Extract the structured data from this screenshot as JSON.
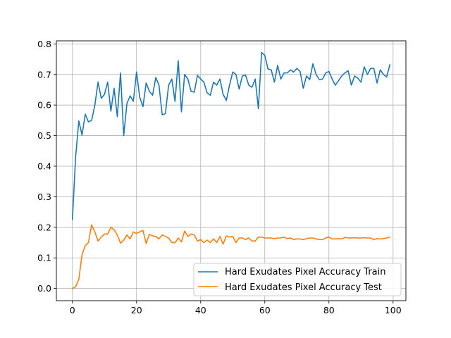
{
  "chart_data": {
    "type": "line",
    "title": "",
    "xlabel": "",
    "ylabel": "",
    "xlim": [
      -5,
      104
    ],
    "ylim": [
      -0.04,
      0.81
    ],
    "x_ticks": [
      0,
      20,
      40,
      60,
      80,
      100
    ],
    "y_ticks": [
      0.0,
      0.1,
      0.2,
      0.3,
      0.4,
      0.5,
      0.6,
      0.7,
      0.8
    ],
    "grid": true,
    "legend_position": "bottom-right",
    "x": [
      0,
      1,
      2,
      3,
      4,
      5,
      6,
      7,
      8,
      9,
      10,
      11,
      12,
      13,
      14,
      15,
      16,
      17,
      18,
      19,
      20,
      21,
      22,
      23,
      24,
      25,
      26,
      27,
      28,
      29,
      30,
      31,
      32,
      33,
      34,
      35,
      36,
      37,
      38,
      39,
      40,
      41,
      42,
      43,
      44,
      45,
      46,
      47,
      48,
      49,
      50,
      51,
      52,
      53,
      54,
      55,
      56,
      57,
      58,
      59,
      60,
      61,
      62,
      63,
      64,
      65,
      66,
      67,
      68,
      69,
      70,
      71,
      72,
      73,
      74,
      75,
      76,
      77,
      78,
      79,
      80,
      81,
      82,
      83,
      84,
      85,
      86,
      87,
      88,
      89,
      90,
      91,
      92,
      93,
      94,
      95,
      96,
      97,
      98,
      99
    ],
    "series": [
      {
        "name": "Hard Exudates Pixel Accuracy Train",
        "color": "#1f77b4",
        "values": [
          0.225,
          0.43,
          0.548,
          0.502,
          0.57,
          0.545,
          0.55,
          0.6,
          0.675,
          0.622,
          0.635,
          0.675,
          0.58,
          0.655,
          0.562,
          0.705,
          0.5,
          0.605,
          0.63,
          0.612,
          0.708,
          0.625,
          0.595,
          0.672,
          0.645,
          0.632,
          0.69,
          0.665,
          0.568,
          0.572,
          0.665,
          0.685,
          0.612,
          0.745,
          0.578,
          0.7,
          0.685,
          0.645,
          0.642,
          0.697,
          0.685,
          0.675,
          0.64,
          0.632,
          0.675,
          0.665,
          0.685,
          0.635,
          0.615,
          0.665,
          0.708,
          0.7,
          0.652,
          0.695,
          0.698,
          0.665,
          0.658,
          0.685,
          0.588,
          0.772,
          0.762,
          0.718,
          0.715,
          0.675,
          0.73,
          0.685,
          0.705,
          0.705,
          0.715,
          0.708,
          0.72,
          0.71,
          0.655,
          0.695,
          0.683,
          0.735,
          0.7,
          0.683,
          0.685,
          0.705,
          0.71,
          0.685,
          0.665,
          0.68,
          0.695,
          0.705,
          0.712,
          0.665,
          0.695,
          0.688,
          0.675,
          0.725,
          0.7,
          0.72,
          0.72,
          0.672,
          0.715,
          0.7,
          0.692,
          0.732
        ]
      },
      {
        "name": "Hard Exudates Pixel Accuracy Test",
        "color": "#ff7f0e",
        "values": [
          0.0,
          0.005,
          0.03,
          0.11,
          0.14,
          0.15,
          0.208,
          0.185,
          0.155,
          0.168,
          0.178,
          0.178,
          0.2,
          0.192,
          0.175,
          0.148,
          0.158,
          0.175,
          0.162,
          0.185,
          0.18,
          0.185,
          0.19,
          0.147,
          0.177,
          0.172,
          0.17,
          0.162,
          0.175,
          0.17,
          0.165,
          0.15,
          0.15,
          0.165,
          0.152,
          0.188,
          0.17,
          0.178,
          0.175,
          0.155,
          0.16,
          0.15,
          0.158,
          0.15,
          0.162,
          0.15,
          0.17,
          0.145,
          0.172,
          0.168,
          0.17,
          0.15,
          0.165,
          0.165,
          0.16,
          0.165,
          0.155,
          0.155,
          0.168,
          0.168,
          0.165,
          0.165,
          0.165,
          0.163,
          0.165,
          0.165,
          0.168,
          0.163,
          0.165,
          0.16,
          0.162,
          0.162,
          0.16,
          0.163,
          0.165,
          0.165,
          0.162,
          0.16,
          0.16,
          0.165,
          0.168,
          0.162,
          0.162,
          0.163,
          0.162,
          0.167,
          0.165,
          0.165,
          0.166,
          0.165,
          0.165,
          0.166,
          0.165,
          0.165,
          0.16,
          0.163,
          0.162,
          0.163,
          0.165,
          0.168
        ]
      }
    ]
  }
}
